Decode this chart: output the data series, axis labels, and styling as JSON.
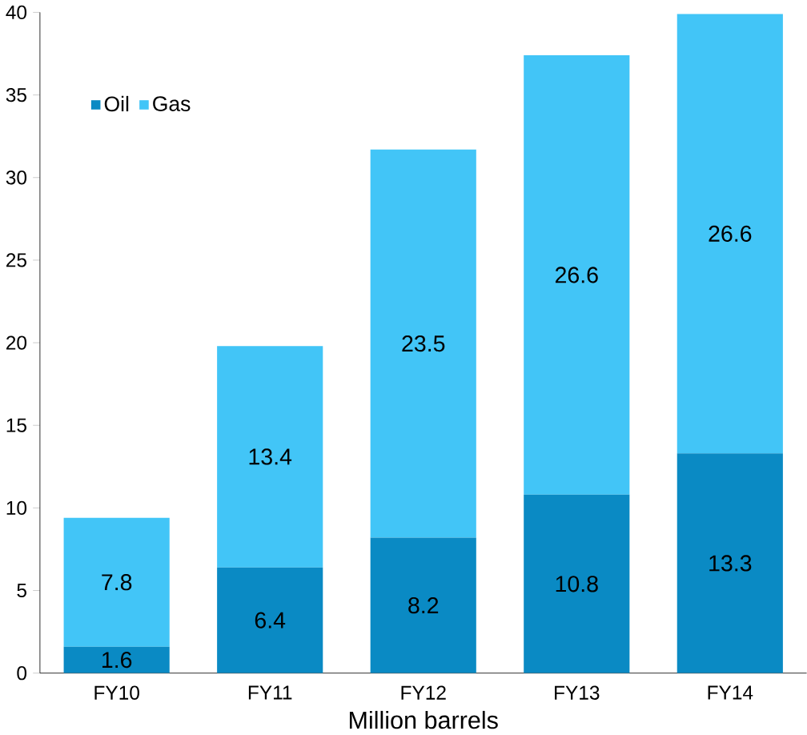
{
  "chart_data": {
    "type": "bar",
    "stacked": true,
    "xlabel": "Million barrels",
    "categories": [
      "FY10",
      "FY11",
      "FY12",
      "FY13",
      "FY14"
    ],
    "series": [
      {
        "name": "Oil",
        "color": "#0a8ac4",
        "values": [
          1.6,
          6.4,
          8.2,
          10.8,
          13.3
        ]
      },
      {
        "name": "Gas",
        "color": "#42c5f7",
        "values": [
          7.8,
          13.4,
          23.5,
          26.6,
          26.6
        ]
      }
    ],
    "ylim": [
      0,
      40
    ],
    "yticks": [
      0,
      5,
      10,
      15,
      20,
      25,
      30,
      35,
      40
    ],
    "data_labels": true,
    "legend": "top left",
    "grid": false
  }
}
